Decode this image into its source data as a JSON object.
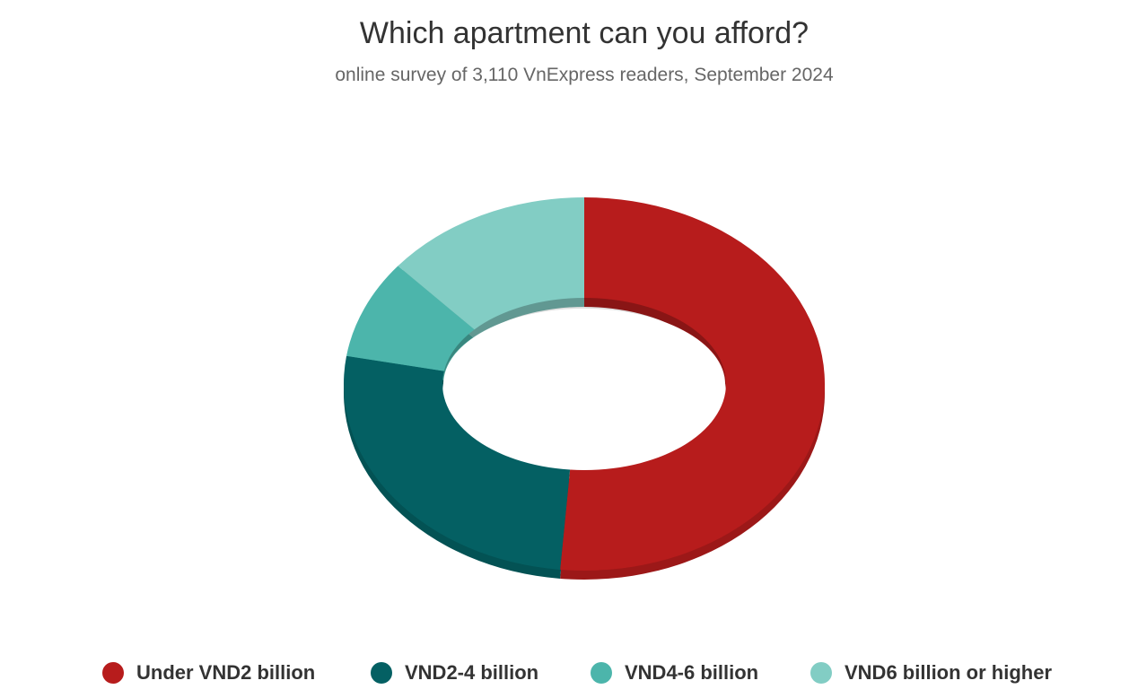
{
  "chart_data": {
    "type": "pie",
    "variant": "donut-3d",
    "title": "Which apartment can you afford?",
    "subtitle": "online survey of 3,110 VnExpress readers, September 2024",
    "categories": [
      "Under VND2 billion",
      "VND2-4 billion",
      "VND4-6 billion",
      "VND6 billion or higher"
    ],
    "values": [
      51.6,
      25.8,
      8.5,
      14.1
    ],
    "unit": "%",
    "colors": [
      "#b71c1c",
      "#046063",
      "#4cb5ab",
      "#82cdc4"
    ],
    "legend_position": "bottom"
  }
}
